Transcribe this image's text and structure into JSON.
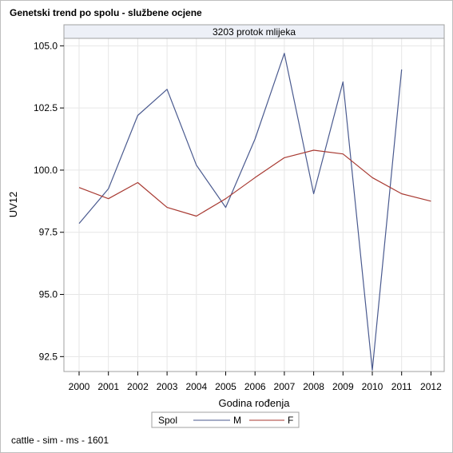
{
  "title": "Genetski trend po spolu - službene ocjene",
  "footnote": "cattle - sim - ms - 1601",
  "chart_data": {
    "type": "line",
    "panel_label": "3203 protok mlijeka",
    "xlabel": "Godina rođenja",
    "ylabel": "UV12",
    "categories": [
      2000,
      2001,
      2002,
      2003,
      2004,
      2005,
      2006,
      2007,
      2008,
      2009,
      2010,
      2011,
      2012
    ],
    "ylim": [
      91.9,
      105.3
    ],
    "yticks": [
      "92.5",
      "95.0",
      "97.5",
      "100.0",
      "102.5",
      "105.0"
    ],
    "grid": true,
    "legend": {
      "title": "Spol",
      "position": "bottom"
    },
    "series": [
      {
        "name": "M",
        "color": "#4a5a8f",
        "values": [
          97.85,
          99.25,
          102.2,
          103.25,
          100.2,
          98.5,
          101.25,
          104.7,
          99.05,
          103.55,
          91.95,
          104.05,
          null
        ]
      },
      {
        "name": "F",
        "color": "#a83a32",
        "values": [
          99.3,
          98.85,
          99.5,
          98.5,
          98.15,
          98.85,
          99.7,
          100.5,
          100.8,
          100.65,
          99.7,
          99.05,
          98.75
        ]
      }
    ]
  }
}
